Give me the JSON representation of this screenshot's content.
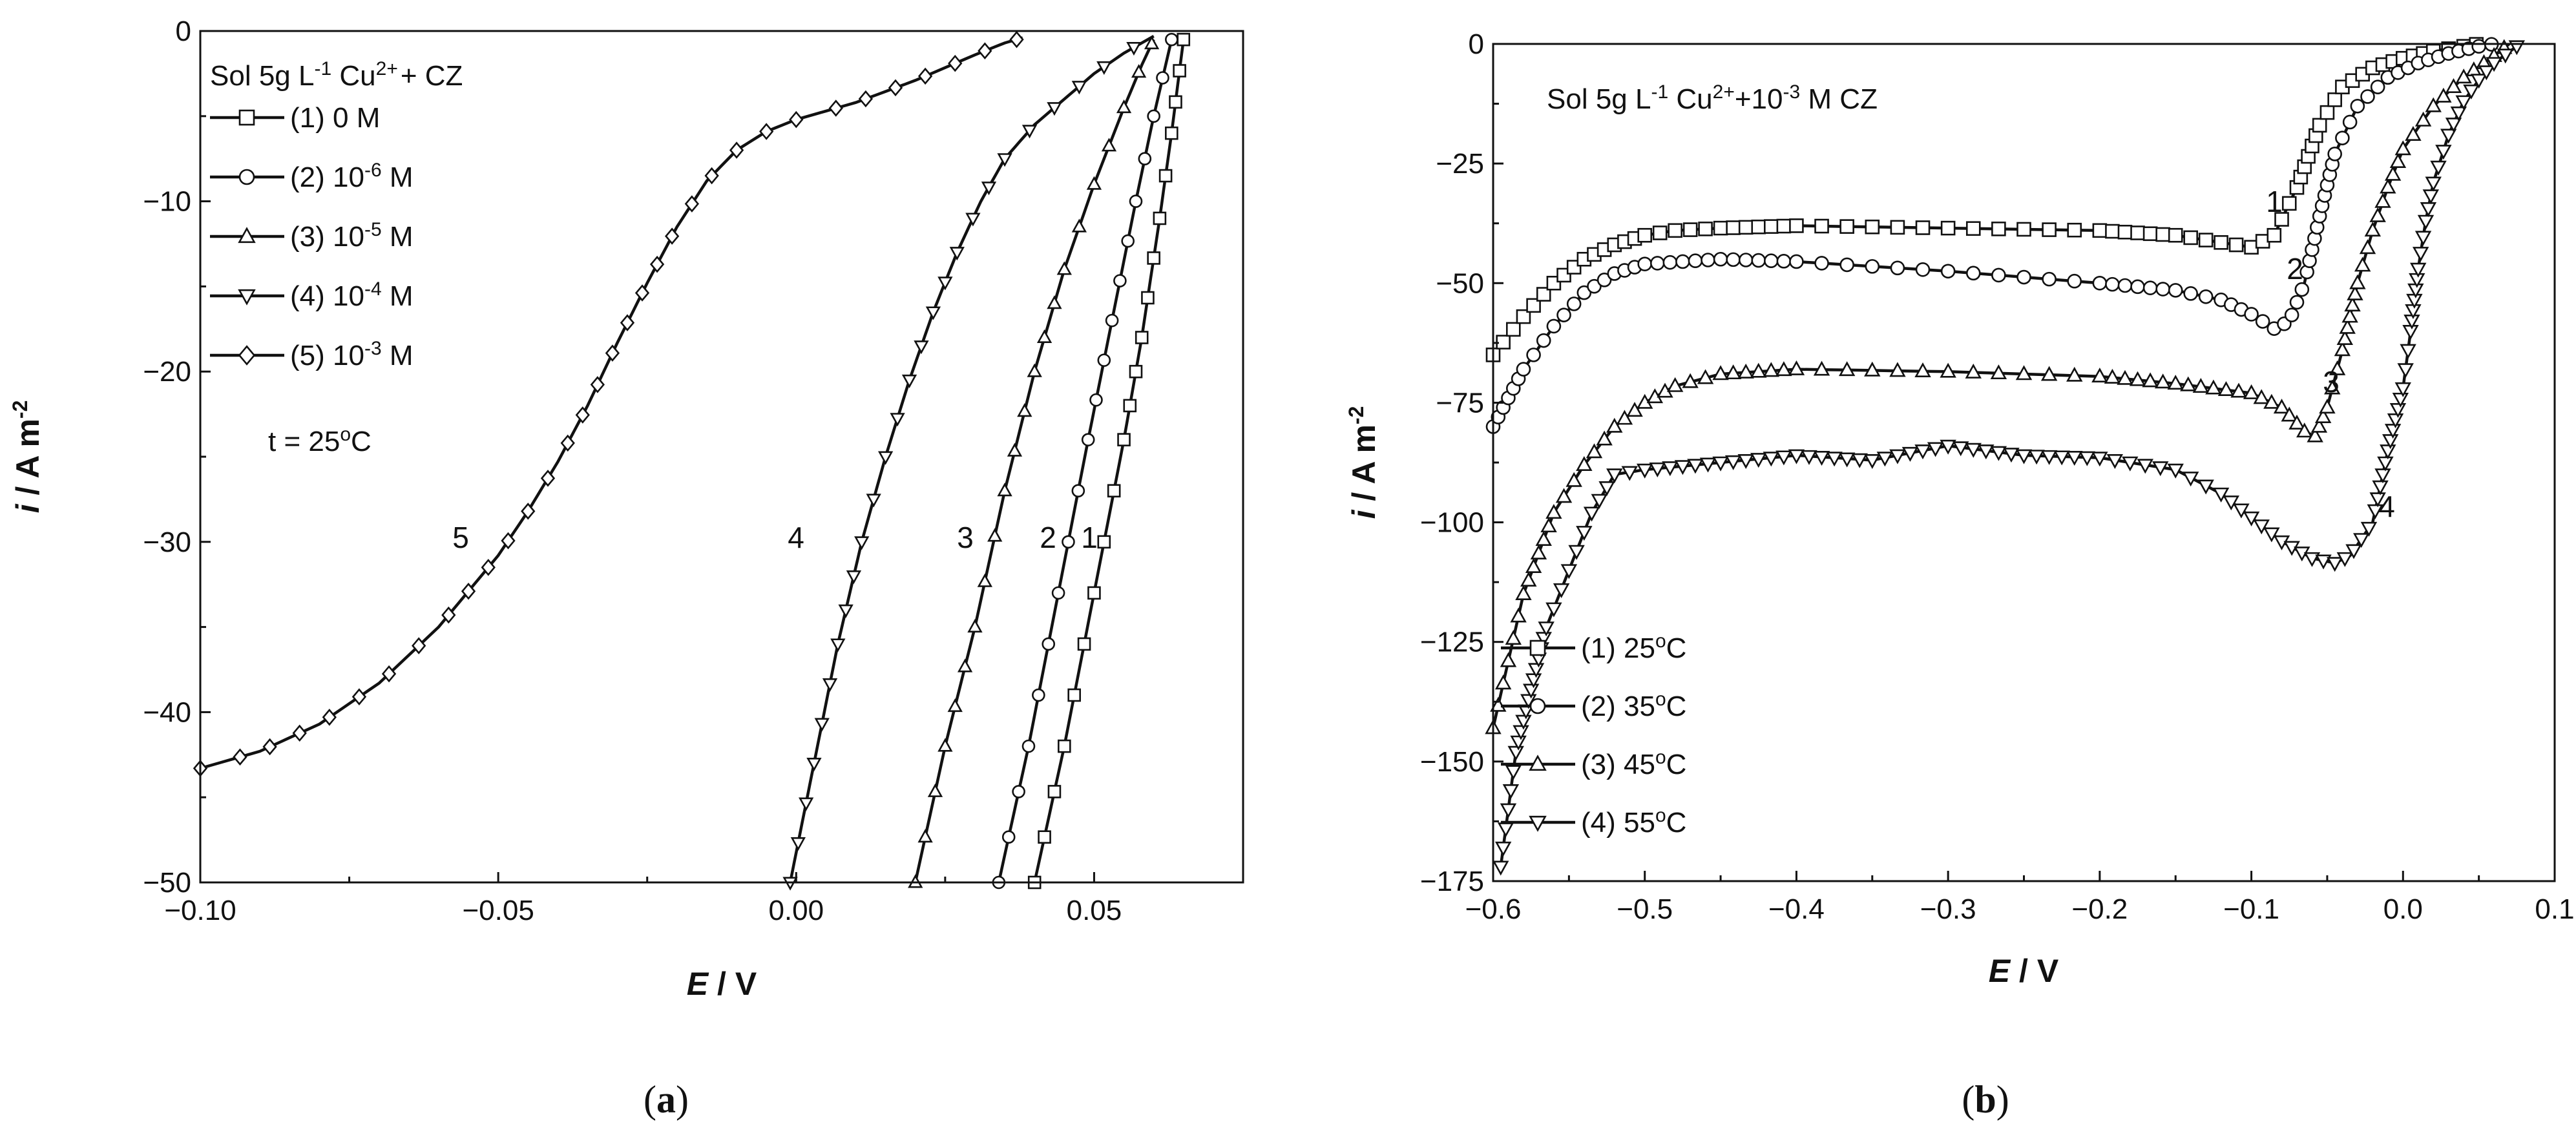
{
  "chart_data": [
    {
      "type": "line",
      "panel_label": "(a)",
      "title": "",
      "xlabel": "E / V",
      "ylabel": "i / A m-2",
      "xlim": [
        -0.1,
        0.075
      ],
      "ylim": [
        -50,
        0
      ],
      "xticks": [
        -0.1,
        -0.05,
        0.0,
        0.05
      ],
      "xtick_labels": [
        "-0.10",
        "-0.05",
        "0.00",
        "0.05"
      ],
      "yticks": [
        0,
        -10,
        -20,
        -30,
        -40,
        -50
      ],
      "ytick_labels": [
        "0",
        "-10",
        "-20",
        "-30",
        "-40",
        "-50"
      ],
      "legend": {
        "title": "Sol 5g L-1 Cu2+ + CZ",
        "placement": "top-left",
        "entries": [
          "(1) 0 M",
          "(2) 10-6 M",
          "(3) 10-5 M",
          "(4) 10-4 M",
          "(5) 10-3 M"
        ]
      },
      "annotations": [
        "t = 25°C"
      ],
      "series": [
        {
          "name": "(1) 0 M",
          "label": "1",
          "marker": "square",
          "x": [
            0.04,
            0.045,
            0.05,
            0.055,
            0.058,
            0.061,
            0.063,
            0.065
          ],
          "y": [
            -50,
            -42,
            -33,
            -24,
            -18,
            -11,
            -6,
            -0.5
          ]
        },
        {
          "name": "(2) 10-6 M",
          "label": "2",
          "marker": "circle",
          "x": [
            0.034,
            0.039,
            0.044,
            0.049,
            0.053,
            0.057,
            0.06,
            0.063
          ],
          "y": [
            -50,
            -42,
            -33,
            -24,
            -17,
            -10,
            -5,
            -0.5
          ]
        },
        {
          "name": "(3) 10-5 M",
          "label": "3",
          "marker": "triangle-up",
          "x": [
            0.02,
            0.025,
            0.03,
            0.035,
            0.04,
            0.045,
            0.05,
            0.055,
            0.058,
            0.06
          ],
          "y": [
            -50,
            -42,
            -35,
            -27,
            -20,
            -14,
            -9,
            -4.5,
            -2,
            -0.5
          ]
        },
        {
          "name": "(4) 10-4 M",
          "label": "4",
          "marker": "triangle-down",
          "x": [
            -0.001,
            0.003,
            0.007,
            0.011,
            0.015,
            0.019,
            0.023,
            0.027,
            0.031,
            0.035,
            0.04,
            0.045,
            0.05,
            0.055,
            0.06
          ],
          "y": [
            -50,
            -43,
            -36,
            -30,
            -25,
            -20.5,
            -16.5,
            -13,
            -10,
            -7.5,
            -5.5,
            -4,
            -2.5,
            -1.3,
            -0.3
          ]
        },
        {
          "name": "(5) 10-3 M",
          "label": "5",
          "marker": "diamond",
          "x": [
            -0.1,
            -0.09,
            -0.08,
            -0.07,
            -0.06,
            -0.05,
            -0.045,
            -0.04,
            -0.035,
            -0.03,
            -0.025,
            -0.02,
            -0.015,
            -0.01,
            -0.005,
            0.0,
            0.01,
            0.02,
            0.03,
            0.035,
            0.038
          ],
          "y": [
            -43.3,
            -42.3,
            -40.7,
            -38.3,
            -35.0,
            -30.8,
            -28.2,
            -25.3,
            -22.0,
            -18.3,
            -14.8,
            -11.5,
            -8.8,
            -7.0,
            -5.9,
            -5.2,
            -4.2,
            -2.9,
            -1.4,
            -0.7,
            -0.4
          ]
        }
      ]
    },
    {
      "type": "line",
      "panel_label": "(b)",
      "title": "",
      "xlabel": "E / V",
      "ylabel": "i / A m-2",
      "xlim": [
        -0.6,
        0.1
      ],
      "ylim": [
        -175,
        0
      ],
      "xticks": [
        -0.6,
        -0.5,
        -0.4,
        -0.3,
        -0.2,
        -0.1,
        0.0,
        0.1
      ],
      "xtick_labels": [
        "-0.6",
        "-0.5",
        "-0.4",
        "-0.3",
        "-0.2",
        "-0.1",
        "0.0",
        "0.1"
      ],
      "yticks": [
        0,
        -25,
        -50,
        -75,
        -100,
        -125,
        -150,
        -175
      ],
      "ytick_labels": [
        "0",
        "-25",
        "-50",
        "-75",
        "-100",
        "-125",
        "-150",
        "-175"
      ],
      "legend": {
        "title": "Sol 5g L-1 Cu2+ +10-3 M CZ",
        "placement": "bottom-left",
        "entries": [
          "(1) 25°C",
          "(2) 35°C",
          "(3) 45°C",
          "(4) 55°C"
        ]
      },
      "series": [
        {
          "name": "(1) 25°C",
          "label": "1",
          "marker": "square",
          "x": [
            -0.6,
            -0.58,
            -0.56,
            -0.54,
            -0.52,
            -0.5,
            -0.48,
            -0.45,
            -0.4,
            -0.3,
            -0.2,
            -0.15,
            -0.12,
            -0.1,
            -0.085,
            -0.07,
            -0.055,
            -0.04,
            -0.02,
            0.0,
            0.02,
            0.04,
            0.05
          ],
          "y": [
            -65,
            -57,
            -50,
            -45,
            -42,
            -40,
            -39,
            -38.5,
            -38,
            -38.5,
            -39,
            -40,
            -41.5,
            -42.5,
            -40,
            -30,
            -17,
            -9,
            -5,
            -3,
            -1.5,
            -0.5,
            0
          ]
        },
        {
          "name": "(2) 35°C",
          "label": "2",
          "marker": "circle",
          "x": [
            -0.6,
            -0.58,
            -0.56,
            -0.54,
            -0.52,
            -0.5,
            -0.45,
            -0.4,
            -0.3,
            -0.2,
            -0.15,
            -0.12,
            -0.1,
            -0.085,
            -0.075,
            -0.065,
            -0.055,
            -0.045,
            -0.03,
            -0.01,
            0.01,
            0.03,
            0.05,
            0.06
          ],
          "y": [
            -80,
            -68,
            -59,
            -52,
            -48,
            -46,
            -45,
            -45.5,
            -47.5,
            -50,
            -51.5,
            -53.5,
            -56.5,
            -59.5,
            -58,
            -50,
            -36,
            -23,
            -13,
            -7,
            -4,
            -2,
            -0.5,
            0
          ]
        },
        {
          "name": "(3) 45°C",
          "label": "3",
          "marker": "triangle-up",
          "x": [
            -0.6,
            -0.58,
            -0.56,
            -0.54,
            -0.52,
            -0.5,
            -0.48,
            -0.45,
            -0.4,
            -0.3,
            -0.2,
            -0.15,
            -0.1,
            -0.08,
            -0.065,
            -0.058,
            -0.05,
            -0.04,
            -0.03,
            -0.02,
            -0.01,
            0.0,
            0.02,
            0.04,
            0.06,
            0.07
          ],
          "y": [
            -143,
            -115,
            -98,
            -88,
            -80,
            -75,
            -71.5,
            -69,
            -68,
            -68.5,
            -69.5,
            -71,
            -73,
            -76,
            -81,
            -82,
            -76,
            -64,
            -50,
            -39,
            -30,
            -22,
            -13,
            -7,
            -2.5,
            0
          ]
        },
        {
          "name": "(4) 55°C",
          "label": "4",
          "marker": "triangle-down",
          "x": [
            -0.595,
            -0.59,
            -0.585,
            -0.575,
            -0.565,
            -0.55,
            -0.535,
            -0.52,
            -0.5,
            -0.45,
            -0.4,
            -0.35,
            -0.3,
            -0.25,
            -0.2,
            -0.17,
            -0.15,
            -0.12,
            -0.1,
            -0.08,
            -0.06,
            -0.045,
            -0.035,
            -0.02,
            -0.01,
            0.0,
            0.005,
            0.01,
            0.015,
            0.02,
            0.03,
            0.04,
            0.05,
            0.06,
            0.075
          ],
          "y": [
            -172,
            -160,
            -148,
            -135,
            -122,
            -110,
            -98,
            -90,
            -89,
            -87.5,
            -86,
            -87,
            -84,
            -86,
            -86.5,
            -88,
            -89,
            -94,
            -99,
            -104,
            -107.5,
            -108.5,
            -107,
            -100,
            -85,
            -72,
            -60,
            -47,
            -37,
            -29,
            -19,
            -12,
            -7.5,
            -4,
            -0.5
          ]
        }
      ],
      "curve_labels": [
        "1",
        "2",
        "3",
        "4"
      ]
    }
  ]
}
